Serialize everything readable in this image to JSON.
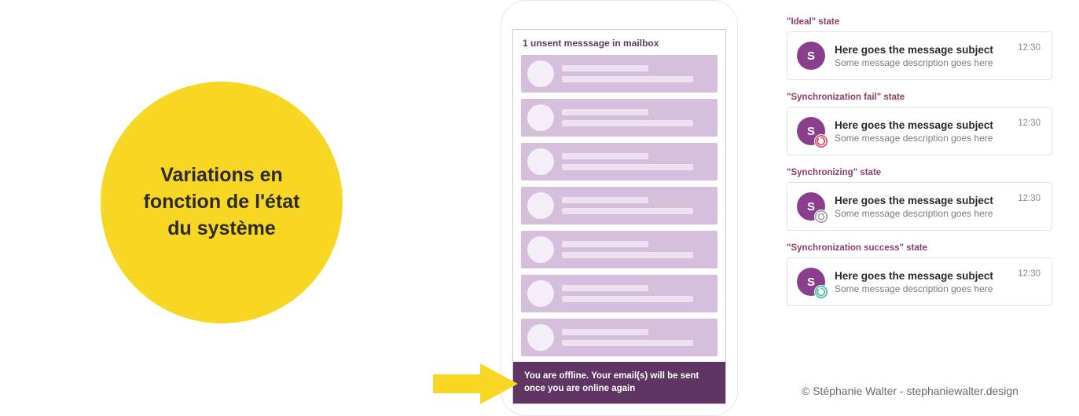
{
  "circle": {
    "bg": "#f7d723",
    "text": "Variations en fonction de l'état du système",
    "text_color": "#2d2a2a",
    "fontsize": 25
  },
  "phone": {
    "header": "1 unsent messsage in mailbox",
    "rows": 7,
    "row_bg": "#d5bfdd",
    "skeleton_bg": "#eee2f1",
    "avatar_bg": "#f4eef6",
    "offline_bg": "#5f3563",
    "offline_text": "You are offline. Your email(s) will be sent once you are online again"
  },
  "arrow": {
    "color": "#f7d723"
  },
  "states": [
    {
      "label": "\"Ideal\" state",
      "subject": "Here goes the message subject",
      "desc": "Some message description goes here",
      "time": "12:30",
      "avatar_letter": "S",
      "avatar_bg": "#8a3e8e",
      "badge": null
    },
    {
      "label": "\"Synchronization fail\" state",
      "subject": "Here goes the message subject",
      "desc": "Some message description goes here",
      "time": "12:30",
      "avatar_letter": "S",
      "avatar_bg": "#8a3e8e",
      "badge": {
        "type": "fail",
        "color": "#d04a5a"
      }
    },
    {
      "label": "\"Synchronizing\" state",
      "subject": "Here goes the message subject",
      "desc": "Some message description goes here",
      "time": "12:30",
      "avatar_letter": "S",
      "avatar_bg": "#8a3e8e",
      "badge": {
        "type": "syncing",
        "color": "#9a9a9a"
      }
    },
    {
      "label": "\"Synchronization success\" state",
      "subject": "Here goes the message subject",
      "desc": "Some message description goes here",
      "time": "12:30",
      "avatar_letter": "S",
      "avatar_bg": "#8a3e8e",
      "badge": {
        "type": "success",
        "color": "#3fbfa0"
      }
    }
  ],
  "credit": "© Stéphanie Walter - stephaniewalter.design"
}
